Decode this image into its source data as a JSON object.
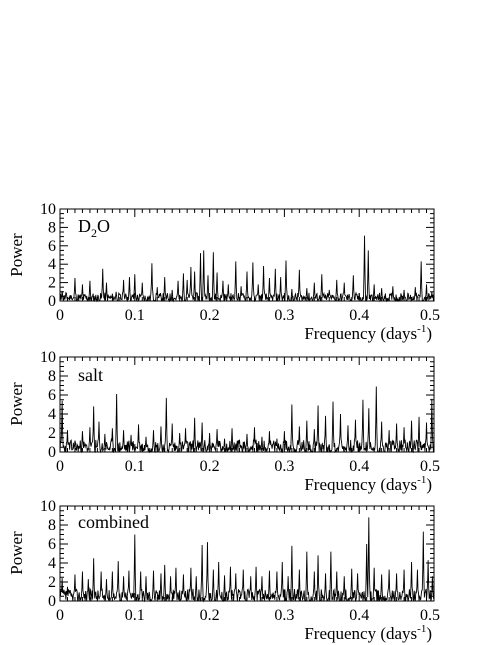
{
  "chart_data": [
    {
      "type": "line",
      "panel_label": "D",
      "panel_label_sub": "2",
      "panel_label_rest": "O",
      "xlabel": "Frequency  (days",
      "xlabel_sup": "-1",
      "xlabel_close": ")",
      "ylabel": "Power",
      "xlim": [
        0,
        0.5
      ],
      "ylim": [
        0,
        10
      ],
      "xticks": [
        "0",
        "0.1",
        "0.2",
        "0.3",
        "0.4",
        "0.5"
      ],
      "yticks": [
        "0",
        "2",
        "4",
        "6",
        "8",
        "10"
      ],
      "grid": false,
      "peaks": [
        [
          0.003,
          1.1
        ],
        [
          0.008,
          0.9
        ],
        [
          0.015,
          0.6
        ],
        [
          0.02,
          2.5
        ],
        [
          0.03,
          1.8
        ],
        [
          0.04,
          2.2
        ],
        [
          0.057,
          3.5
        ],
        [
          0.062,
          2.0
        ],
        [
          0.075,
          1.0
        ],
        [
          0.085,
          2.3
        ],
        [
          0.093,
          2.6
        ],
        [
          0.1,
          2.9
        ],
        [
          0.11,
          2.0
        ],
        [
          0.123,
          4.1
        ],
        [
          0.13,
          1.5
        ],
        [
          0.14,
          2.6
        ],
        [
          0.15,
          1.2
        ],
        [
          0.158,
          2.2
        ],
        [
          0.165,
          3.0
        ],
        [
          0.17,
          2.3
        ],
        [
          0.175,
          3.7
        ],
        [
          0.18,
          3.2
        ],
        [
          0.188,
          5.2
        ],
        [
          0.192,
          5.5
        ],
        [
          0.198,
          2.8
        ],
        [
          0.205,
          5.3
        ],
        [
          0.21,
          3.1
        ],
        [
          0.218,
          2.2
        ],
        [
          0.225,
          1.8
        ],
        [
          0.235,
          4.3
        ],
        [
          0.242,
          1.6
        ],
        [
          0.25,
          3.2
        ],
        [
          0.258,
          4.2
        ],
        [
          0.265,
          1.8
        ],
        [
          0.272,
          3.8
        ],
        [
          0.28,
          2.5
        ],
        [
          0.288,
          3.5
        ],
        [
          0.295,
          2.6
        ],
        [
          0.302,
          4.4
        ],
        [
          0.31,
          1.3
        ],
        [
          0.32,
          3.4
        ],
        [
          0.33,
          1.4
        ],
        [
          0.34,
          2.0
        ],
        [
          0.35,
          2.9
        ],
        [
          0.36,
          1.2
        ],
        [
          0.37,
          2.3
        ],
        [
          0.38,
          2.0
        ],
        [
          0.392,
          2.8
        ],
        [
          0.407,
          7.1
        ],
        [
          0.412,
          5.5
        ],
        [
          0.42,
          1.8
        ],
        [
          0.43,
          1.4
        ],
        [
          0.445,
          1.6
        ],
        [
          0.46,
          1.2
        ],
        [
          0.475,
          1.5
        ],
        [
          0.483,
          4.3
        ],
        [
          0.49,
          1.8
        ],
        [
          0.497,
          1.0
        ]
      ]
    },
    {
      "type": "line",
      "panel_label": "salt",
      "xlabel": "Frequency  (days",
      "xlabel_sup": "-1",
      "xlabel_close": ")",
      "ylabel": "Power",
      "xlim": [
        0,
        0.5
      ],
      "ylim": [
        0,
        10
      ],
      "xticks": [
        "0",
        "0.1",
        "0.2",
        "0.3",
        "0.4",
        "0.5"
      ],
      "yticks": [
        "0",
        "2",
        "4",
        "6",
        "8",
        "10"
      ],
      "grid": false,
      "peaks": [
        [
          0.003,
          5.4
        ],
        [
          0.01,
          2.3
        ],
        [
          0.02,
          1.2
        ],
        [
          0.03,
          2.2
        ],
        [
          0.04,
          2.6
        ],
        [
          0.045,
          4.8
        ],
        [
          0.052,
          3.2
        ],
        [
          0.06,
          1.9
        ],
        [
          0.07,
          2.5
        ],
        [
          0.076,
          6.1
        ],
        [
          0.085,
          2.3
        ],
        [
          0.095,
          1.8
        ],
        [
          0.105,
          2.9
        ],
        [
          0.115,
          1.6
        ],
        [
          0.125,
          2.3
        ],
        [
          0.135,
          2.7
        ],
        [
          0.142,
          5.7
        ],
        [
          0.15,
          3.0
        ],
        [
          0.16,
          2.0
        ],
        [
          0.168,
          2.5
        ],
        [
          0.18,
          3.6
        ],
        [
          0.19,
          3.1
        ],
        [
          0.2,
          2.0
        ],
        [
          0.21,
          2.4
        ],
        [
          0.22,
          1.4
        ],
        [
          0.23,
          2.5
        ],
        [
          0.24,
          1.3
        ],
        [
          0.25,
          1.9
        ],
        [
          0.26,
          2.6
        ],
        [
          0.27,
          1.6
        ],
        [
          0.28,
          2.2
        ],
        [
          0.29,
          1.4
        ],
        [
          0.3,
          2.2
        ],
        [
          0.31,
          5.0
        ],
        [
          0.32,
          2.7
        ],
        [
          0.33,
          3.3
        ],
        [
          0.34,
          2.4
        ],
        [
          0.345,
          4.9
        ],
        [
          0.355,
          3.8
        ],
        [
          0.365,
          5.3
        ],
        [
          0.375,
          4.0
        ],
        [
          0.385,
          2.8
        ],
        [
          0.395,
          3.4
        ],
        [
          0.405,
          5.5
        ],
        [
          0.413,
          4.6
        ],
        [
          0.423,
          6.9
        ],
        [
          0.43,
          3.2
        ],
        [
          0.44,
          2.3
        ],
        [
          0.45,
          3.0
        ],
        [
          0.46,
          2.6
        ],
        [
          0.47,
          3.3
        ],
        [
          0.48,
          3.7
        ],
        [
          0.49,
          3.1
        ],
        [
          0.497,
          5.6
        ]
      ]
    },
    {
      "type": "line",
      "panel_label": "combined",
      "xlabel": "Frequency  (days",
      "xlabel_sup": "-1",
      "xlabel_close": ")",
      "ylabel": "Power",
      "xlim": [
        0,
        0.5
      ],
      "ylim": [
        0,
        10
      ],
      "xticks": [
        "0",
        "0.1",
        "0.2",
        "0.3",
        "0.4",
        "0.5"
      ],
      "yticks": [
        "0",
        "2",
        "4",
        "6",
        "8",
        "10"
      ],
      "grid": false,
      "peaks": [
        [
          0.003,
          2.4
        ],
        [
          0.01,
          1.5
        ],
        [
          0.02,
          2.8
        ],
        [
          0.03,
          3.1
        ],
        [
          0.038,
          2.3
        ],
        [
          0.045,
          4.5
        ],
        [
          0.055,
          3.1
        ],
        [
          0.062,
          2.3
        ],
        [
          0.07,
          3.1
        ],
        [
          0.078,
          4.2
        ],
        [
          0.085,
          2.6
        ],
        [
          0.092,
          3.2
        ],
        [
          0.1,
          7.0
        ],
        [
          0.108,
          3.1
        ],
        [
          0.115,
          2.6
        ],
        [
          0.125,
          3.2
        ],
        [
          0.135,
          2.9
        ],
        [
          0.14,
          3.8
        ],
        [
          0.148,
          2.6
        ],
        [
          0.155,
          3.5
        ],
        [
          0.165,
          2.8
        ],
        [
          0.175,
          3.5
        ],
        [
          0.182,
          2.6
        ],
        [
          0.19,
          5.9
        ],
        [
          0.197,
          6.2
        ],
        [
          0.205,
          3.3
        ],
        [
          0.212,
          4.1
        ],
        [
          0.22,
          2.7
        ],
        [
          0.228,
          3.6
        ],
        [
          0.235,
          2.9
        ],
        [
          0.245,
          3.3
        ],
        [
          0.255,
          2.6
        ],
        [
          0.262,
          3.6
        ],
        [
          0.27,
          2.6
        ],
        [
          0.28,
          3.2
        ],
        [
          0.29,
          3.1
        ],
        [
          0.297,
          4.1
        ],
        [
          0.305,
          2.6
        ],
        [
          0.31,
          5.8
        ],
        [
          0.32,
          3.3
        ],
        [
          0.33,
          5.2
        ],
        [
          0.34,
          3.1
        ],
        [
          0.345,
          4.8
        ],
        [
          0.355,
          2.9
        ],
        [
          0.362,
          5.2
        ],
        [
          0.37,
          3.1
        ],
        [
          0.38,
          2.6
        ],
        [
          0.39,
          3.4
        ],
        [
          0.398,
          2.9
        ],
        [
          0.41,
          6.0
        ],
        [
          0.413,
          8.8
        ],
        [
          0.42,
          3.5
        ],
        [
          0.43,
          2.8
        ],
        [
          0.44,
          3.3
        ],
        [
          0.45,
          2.9
        ],
        [
          0.46,
          3.3
        ],
        [
          0.47,
          4.1
        ],
        [
          0.478,
          3.3
        ],
        [
          0.486,
          7.3
        ],
        [
          0.492,
          4.3
        ],
        [
          0.498,
          2.6
        ]
      ]
    }
  ]
}
